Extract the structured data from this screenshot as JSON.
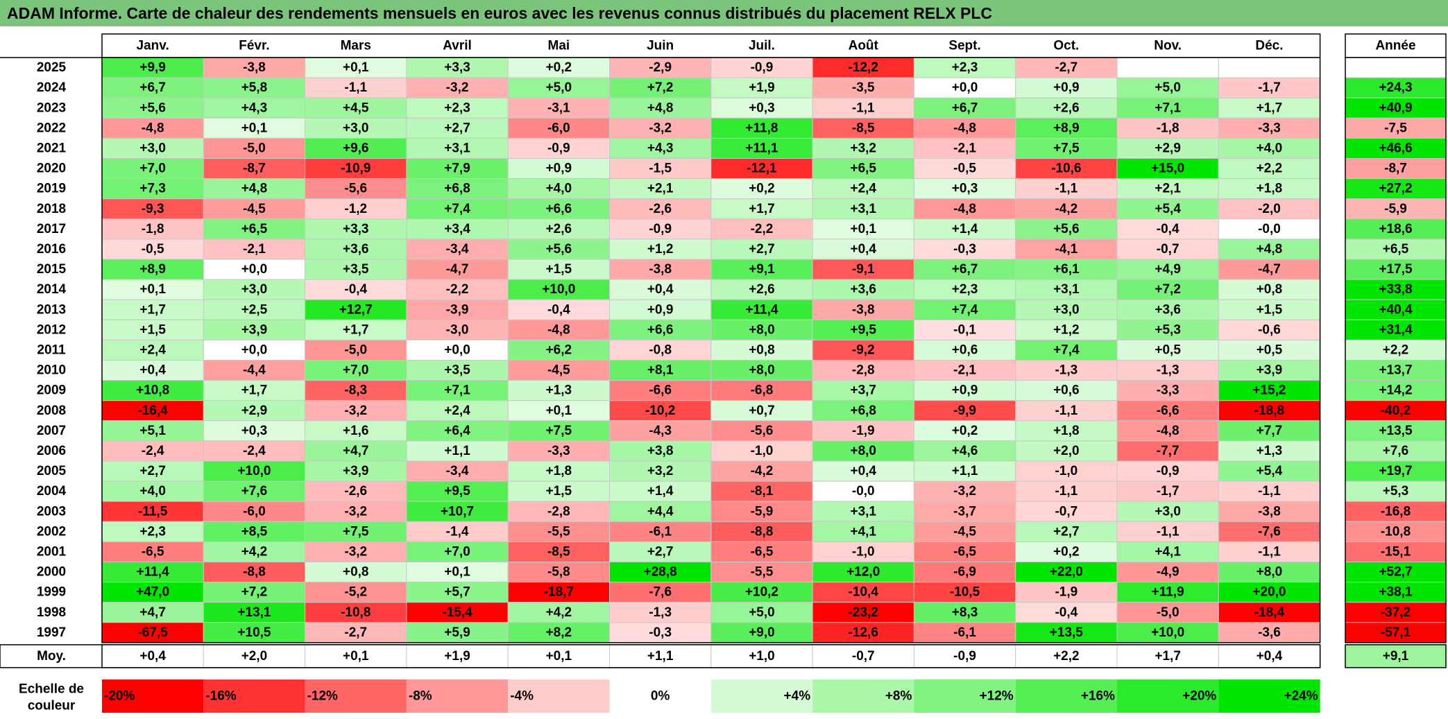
{
  "title": "ADAM Informe. Carte de chaleur des rendements mensuels en euros avec les revenus connus distribués du placement RELX PLC",
  "chart_data": {
    "type": "heatmap",
    "columns": [
      "Janv.",
      "Févr.",
      "Mars",
      "Avril",
      "Mai",
      "Juin",
      "Juil.",
      "Août",
      "Sept.",
      "Oct.",
      "Nov.",
      "Déc."
    ],
    "annual_header": "Année",
    "rows": [
      {
        "year": "2025",
        "values": [
          "+9,9",
          "-3,8",
          "+0,1",
          "+3,3",
          "+0,2",
          "-2,9",
          "-0,9",
          "-12,2",
          "+2,3",
          "-2,7",
          "",
          ""
        ],
        "annual": ""
      },
      {
        "year": "2024",
        "values": [
          "+6,7",
          "+5,8",
          "-1,1",
          "-3,2",
          "+5,0",
          "+7,2",
          "+1,9",
          "-3,5",
          "+0,0",
          "+0,9",
          "+5,0",
          "-1,7"
        ],
        "annual": "+24,3"
      },
      {
        "year": "2023",
        "values": [
          "+5,6",
          "+4,3",
          "+4,5",
          "+2,3",
          "-3,1",
          "+4,8",
          "+0,3",
          "-1,1",
          "+6,7",
          "+2,6",
          "+7,1",
          "+1,7"
        ],
        "annual": "+40,9"
      },
      {
        "year": "2022",
        "values": [
          "-4,8",
          "+0,1",
          "+3,0",
          "+2,7",
          "-6,0",
          "-3,2",
          "+11,8",
          "-8,5",
          "-4,8",
          "+8,9",
          "-1,8",
          "-3,3"
        ],
        "annual": "-7,5"
      },
      {
        "year": "2021",
        "values": [
          "+3,0",
          "-5,0",
          "+9,6",
          "+3,1",
          "-0,9",
          "+4,3",
          "+11,1",
          "+3,2",
          "-2,1",
          "+7,5",
          "+2,9",
          "+4,0"
        ],
        "annual": "+46,6"
      },
      {
        "year": "2020",
        "values": [
          "+7,0",
          "-8,7",
          "-10,9",
          "+7,9",
          "+0,9",
          "-1,5",
          "-12,1",
          "+6,5",
          "-0,5",
          "-10,6",
          "+15,0",
          "+2,2"
        ],
        "annual": "-8,7"
      },
      {
        "year": "2019",
        "values": [
          "+7,3",
          "+4,8",
          "-5,6",
          "+6,8",
          "+4,0",
          "+2,1",
          "+0,2",
          "+2,4",
          "+0,3",
          "-1,1",
          "+2,1",
          "+1,8"
        ],
        "annual": "+27,2"
      },
      {
        "year": "2018",
        "values": [
          "-9,3",
          "-4,5",
          "-1,2",
          "+7,4",
          "+6,6",
          "-2,6",
          "+1,7",
          "+3,1",
          "-4,8",
          "-4,2",
          "+5,4",
          "-2,0"
        ],
        "annual": "-5,9"
      },
      {
        "year": "2017",
        "values": [
          "-1,8",
          "+6,5",
          "+3,3",
          "+3,4",
          "+2,6",
          "-0,9",
          "-2,2",
          "+0,1",
          "+1,4",
          "+5,6",
          "-0,4",
          "-0,0"
        ],
        "annual": "+18,6"
      },
      {
        "year": "2016",
        "values": [
          "-0,5",
          "-2,1",
          "+3,6",
          "-3,4",
          "+5,6",
          "+1,2",
          "+2,7",
          "+0,4",
          "-0,3",
          "-4,1",
          "-0,7",
          "+4,8"
        ],
        "annual": "+6,5"
      },
      {
        "year": "2015",
        "values": [
          "+8,9",
          "+0,0",
          "+3,5",
          "-4,7",
          "+1,5",
          "-3,8",
          "+9,1",
          "-9,1",
          "+6,7",
          "+6,1",
          "+4,9",
          "-4,7"
        ],
        "annual": "+17,5"
      },
      {
        "year": "2014",
        "values": [
          "+0,1",
          "+3,0",
          "-0,4",
          "-2,2",
          "+10,0",
          "+0,4",
          "+2,6",
          "+3,6",
          "+2,3",
          "+3,1",
          "+7,2",
          "+0,8"
        ],
        "annual": "+33,8"
      },
      {
        "year": "2013",
        "values": [
          "+1,7",
          "+2,5",
          "+12,7",
          "-3,9",
          "-0,4",
          "+0,9",
          "+11,4",
          "-3,8",
          "+7,4",
          "+3,0",
          "+3,6",
          "+1,5"
        ],
        "annual": "+40,4"
      },
      {
        "year": "2012",
        "values": [
          "+1,5",
          "+3,9",
          "+1,7",
          "-3,0",
          "-4,8",
          "+6,6",
          "+8,0",
          "+9,5",
          "-0,1",
          "+1,2",
          "+5,3",
          "-0,6"
        ],
        "annual": "+31,4"
      },
      {
        "year": "2011",
        "values": [
          "+2,4",
          "+0,0",
          "-5,0",
          "+0,0",
          "+6,2",
          "-0,8",
          "+0,8",
          "-9,2",
          "+0,6",
          "+7,4",
          "+0,5",
          "+0,5"
        ],
        "annual": "+2,2"
      },
      {
        "year": "2010",
        "values": [
          "+0,4",
          "-4,4",
          "+7,0",
          "+3,5",
          "-4,5",
          "+8,1",
          "+8,0",
          "-2,8",
          "-2,1",
          "-1,3",
          "-1,3",
          "+3,9"
        ],
        "annual": "+13,7"
      },
      {
        "year": "2009",
        "values": [
          "+10,8",
          "+1,7",
          "-8,3",
          "+7,1",
          "+1,3",
          "-6,6",
          "-6,8",
          "+3,7",
          "+0,9",
          "+0,6",
          "-3,3",
          "+15,2"
        ],
        "annual": "+14,2"
      },
      {
        "year": "2008",
        "values": [
          "-16,4",
          "+2,9",
          "-3,2",
          "+2,4",
          "+0,1",
          "-10,2",
          "+0,7",
          "+6,8",
          "-9,9",
          "-1,1",
          "-6,6",
          "-18,8"
        ],
        "annual": "-40,2"
      },
      {
        "year": "2007",
        "values": [
          "+5,1",
          "+0,3",
          "+1,6",
          "+6,4",
          "+7,5",
          "-4,3",
          "-5,6",
          "-1,9",
          "+0,2",
          "+1,8",
          "-4,8",
          "+7,7"
        ],
        "annual": "+13,5"
      },
      {
        "year": "2006",
        "values": [
          "-2,4",
          "-2,4",
          "+4,7",
          "+1,1",
          "-3,3",
          "+3,8",
          "-1,0",
          "+8,0",
          "+4,6",
          "+2,0",
          "-7,7",
          "+1,3"
        ],
        "annual": "+7,6"
      },
      {
        "year": "2005",
        "values": [
          "+2,7",
          "+10,0",
          "+3,9",
          "-3,4",
          "+1,8",
          "+3,2",
          "-4,2",
          "+0,4",
          "+1,1",
          "-1,0",
          "-0,9",
          "+5,4"
        ],
        "annual": "+19,7"
      },
      {
        "year": "2004",
        "values": [
          "+4,0",
          "+7,6",
          "-2,6",
          "+9,5",
          "+1,5",
          "+1,4",
          "-8,1",
          "-0,0",
          "-3,2",
          "-1,1",
          "-1,7",
          "-1,1"
        ],
        "annual": "+5,3"
      },
      {
        "year": "2003",
        "values": [
          "-11,5",
          "-6,0",
          "-3,2",
          "+10,7",
          "-2,8",
          "+4,4",
          "-5,9",
          "+3,1",
          "-3,7",
          "-0,7",
          "+3,0",
          "-3,8"
        ],
        "annual": "-16,8"
      },
      {
        "year": "2002",
        "values": [
          "+2,3",
          "+8,5",
          "+7,5",
          "-1,4",
          "-5,5",
          "-6,1",
          "-8,8",
          "+4,1",
          "-4,5",
          "+2,7",
          "-1,1",
          "-7,6"
        ],
        "annual": "-10,8"
      },
      {
        "year": "2001",
        "values": [
          "-6,5",
          "+4,2",
          "-3,2",
          "+7,0",
          "-8,5",
          "+2,7",
          "-6,5",
          "-1,0",
          "-6,5",
          "+0,2",
          "+4,1",
          "-1,1"
        ],
        "annual": "-15,1"
      },
      {
        "year": "2000",
        "values": [
          "+11,4",
          "-8,8",
          "+0,8",
          "+0,1",
          "-5,8",
          "+28,8",
          "-5,5",
          "+12,0",
          "-6,9",
          "+22,0",
          "-4,9",
          "+8,0"
        ],
        "annual": "+52,7"
      },
      {
        "year": "1999",
        "values": [
          "+47,0",
          "+7,2",
          "-5,2",
          "+5,7",
          "-18,7",
          "-7,6",
          "+10,2",
          "-10,4",
          "-10,5",
          "-1,9",
          "+11,9",
          "+20,0"
        ],
        "annual": "+38,1"
      },
      {
        "year": "1998",
        "values": [
          "+4,7",
          "+13,1",
          "-10,8",
          "-15,4",
          "+4,2",
          "-1,3",
          "+5,0",
          "-23,2",
          "+8,3",
          "-0,4",
          "-5,0",
          "-18,4"
        ],
        "annual": "-37,2"
      },
      {
        "year": "1997",
        "values": [
          "-67,5",
          "+10,5",
          "-2,7",
          "+5,9",
          "+8,2",
          "-0,3",
          "+9,0",
          "-12,6",
          "-6,1",
          "+13,5",
          "+10,0",
          "-3,6"
        ],
        "annual": "-57,1"
      }
    ],
    "average": {
      "label": "Moy.",
      "values": [
        "+0,4",
        "+2,0",
        "+0,1",
        "+1,9",
        "+0,1",
        "+1,1",
        "+1,0",
        "-0,7",
        "-0,9",
        "+2,2",
        "+1,7",
        "+0,4"
      ],
      "annual": "+9,1"
    },
    "scale": {
      "label_line1": "Echelle de",
      "label_line2": "couleur",
      "items": [
        "-20%",
        "-16%",
        "-12%",
        "-8%",
        "-4%",
        "0%",
        "+4%",
        "+8%",
        "+12%",
        "+16%",
        "+20%",
        "+24%"
      ],
      "values": [
        -20,
        -16,
        -12,
        -8,
        -4,
        0,
        4,
        8,
        12,
        16,
        20,
        24
      ]
    },
    "colors": {
      "negative": "#ff0000",
      "positive": "#00e600",
      "neutral": "#ffffff",
      "title_bar": "#7ac47c"
    }
  }
}
